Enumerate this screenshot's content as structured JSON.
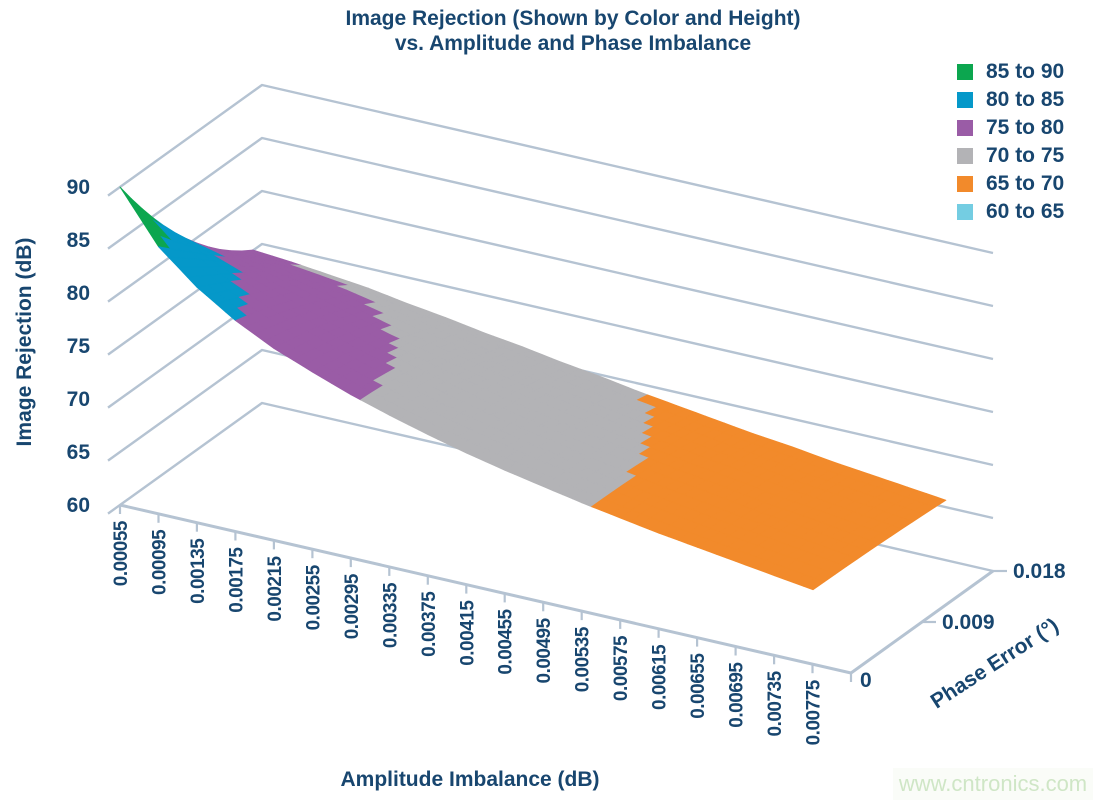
{
  "title": {
    "line1": "Image Rejection (Shown by Color and Height)",
    "line2": "vs. Amplitude and Phase Imbalance"
  },
  "watermark": "www.cntronics.com",
  "colors": {
    "navy_text": "#18466f",
    "gridline": "#b5c3d2",
    "band_85_90": "#0ca64f",
    "band_80_85": "#0598c9",
    "band_75_80": "#9a5ca6",
    "band_70_75": "#b3b3b6",
    "band_65_70": "#f28a2b",
    "band_60_65": "#74cde2"
  },
  "legend": {
    "items": [
      {
        "label": "85 to 90",
        "color": "#0ca64f",
        "min": 85
      },
      {
        "label": "80 to 85",
        "color": "#0598c9",
        "min": 80
      },
      {
        "label": "75 to 80",
        "color": "#9a5ca6",
        "min": 75
      },
      {
        "label": "70 to 75",
        "color": "#b3b3b6",
        "min": 70
      },
      {
        "label": "65 to 70",
        "color": "#f28a2b",
        "min": 65
      },
      {
        "label": "60 to 65",
        "color": "#74cde2",
        "min": 60
      }
    ]
  },
  "axes": {
    "y": {
      "title": "Image Rejection (dB)",
      "ticks": [
        "60",
        "65",
        "70",
        "75",
        "80",
        "85",
        "90"
      ],
      "min": 60,
      "max": 90,
      "step": 5
    },
    "x": {
      "title": "Amplitude Imbalance (dB)",
      "ticks": [
        "0.00055",
        "0.00095",
        "0.00135",
        "0.00175",
        "0.00215",
        "0.00255",
        "0.00295",
        "0.00335",
        "0.00375",
        "0.00415",
        "0.00455",
        "0.00495",
        "0.00535",
        "0.00575",
        "0.00615",
        "0.00655",
        "0.00695",
        "0.00735",
        "0.00775"
      ]
    },
    "z": {
      "title": "Phase Error (°)",
      "ticks": [
        "0",
        "0.009",
        "0.018"
      ]
    }
  },
  "chart_data": {
    "type": "heatmap",
    "subtype": "3d-surface",
    "title": "Image Rejection (Shown by Color and Height) vs. Amplitude and Phase Imbalance",
    "xlabel": "Amplitude Imbalance (dB)",
    "ylabel": "Image Rejection (dB)",
    "zlabel": "Phase Error (°)",
    "ylim": [
      60,
      90
    ],
    "grid": true,
    "legend_position": "top-right",
    "categories": [
      0.00055,
      0.00095,
      0.00135,
      0.00175,
      0.00215,
      0.00255,
      0.00295,
      0.00335,
      0.00375,
      0.00415,
      0.00455,
      0.00495,
      0.00535,
      0.00575,
      0.00615,
      0.00655,
      0.00695,
      0.00735,
      0.00775
    ],
    "series": [
      {
        "name": "0",
        "values": [
          90.0,
          85.2,
          82.2,
          79.9,
          78.1,
          76.7,
          75.4,
          74.3,
          73.3,
          72.4,
          71.6,
          70.9,
          70.2,
          69.6,
          69.0,
          68.5,
          68.0,
          67.5,
          67.0
        ]
      },
      {
        "name": "0.009",
        "values": [
          80.6,
          79.7,
          78.6,
          77.5,
          76.4,
          75.3,
          74.4,
          73.5,
          72.6,
          71.9,
          71.2,
          70.5,
          69.9,
          69.3,
          68.8,
          68.2,
          67.8,
          67.3,
          66.8
        ]
      },
      {
        "name": "0.018",
        "values": [
          75.0,
          74.7,
          74.3,
          73.9,
          73.3,
          72.8,
          72.2,
          71.7,
          71.1,
          70.6,
          70.0,
          69.5,
          69.0,
          68.5,
          68.1,
          67.6,
          67.2,
          66.8,
          66.4
        ]
      }
    ],
    "bands": [
      {
        "range": "85 to 90",
        "color": "#0ca64f"
      },
      {
        "range": "80 to 85",
        "color": "#0598c9"
      },
      {
        "range": "75 to 80",
        "color": "#9a5ca6"
      },
      {
        "range": "70 to 75",
        "color": "#b3b3b6"
      },
      {
        "range": "65 to 70",
        "color": "#f28a2b"
      },
      {
        "range": "60 to 65",
        "color": "#74cde2"
      }
    ]
  }
}
